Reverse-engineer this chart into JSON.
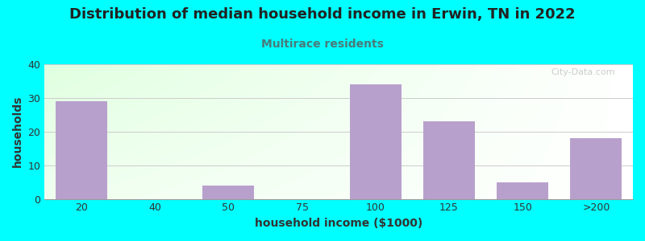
{
  "title": "Distribution of median household income in Erwin, TN in 2022",
  "subtitle": "Multirace residents",
  "xlabel": "household income ($1000)",
  "ylabel": "households",
  "bg_color": "#00FFFF",
  "bar_color": "#B8A0CC",
  "title_color": "#222222",
  "subtitle_color": "#4A7A7A",
  "categories": [
    "20",
    "40",
    "50",
    "75",
    "100",
    "125",
    "150",
    ">200"
  ],
  "values": [
    29,
    0,
    4,
    0,
    34,
    23,
    5,
    18
  ],
  "ylim": [
    0,
    40
  ],
  "yticks": [
    0,
    10,
    20,
    30,
    40
  ],
  "watermark": "City-Data.com"
}
